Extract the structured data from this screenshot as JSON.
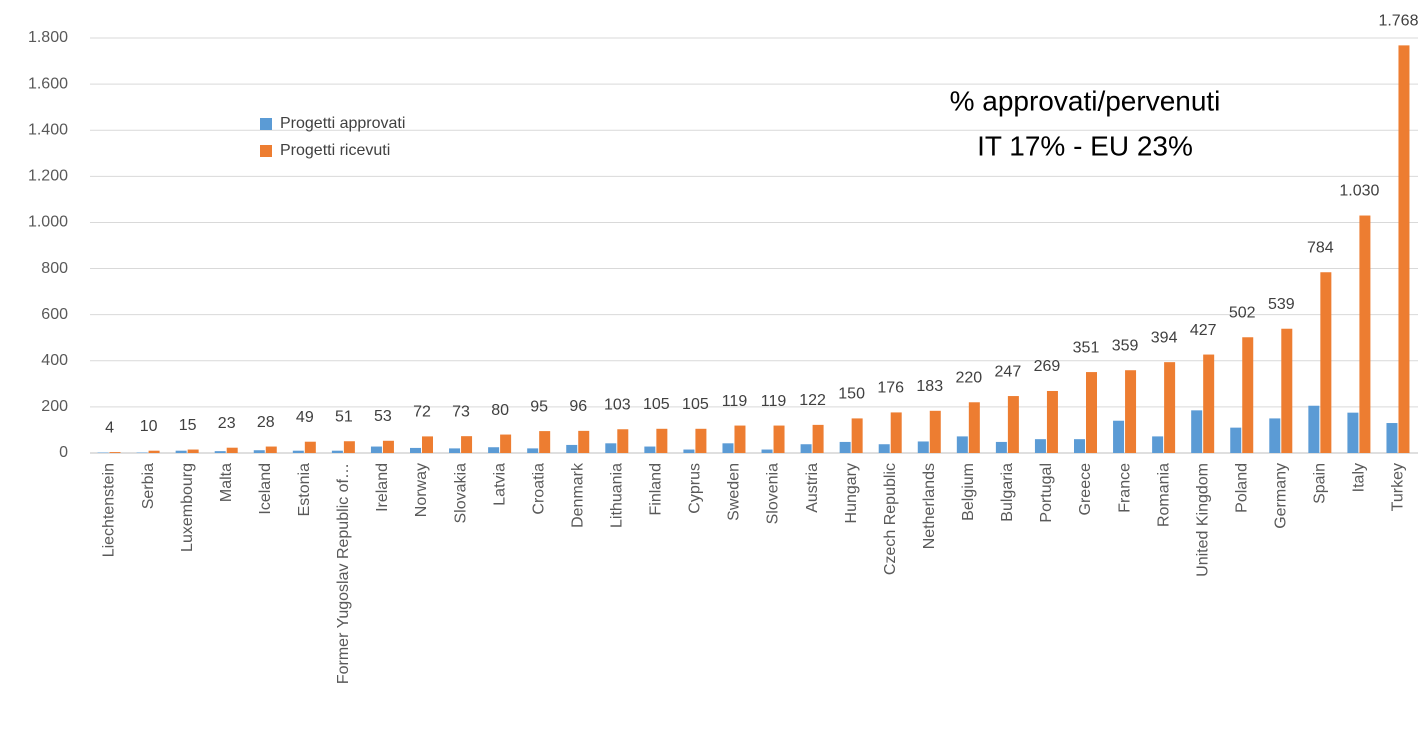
{
  "chart_data": {
    "type": "bar",
    "categories": [
      "Liechtenstein",
      "Serbia",
      "Luxembourg",
      "Malta",
      "Iceland",
      "Estonia",
      "Former Yugoslav Republic of…",
      "Ireland",
      "Norway",
      "Slovakia",
      "Latvia",
      "Croatia",
      "Denmark",
      "Lithuania",
      "Finland",
      "Cyprus",
      "Sweden",
      "Slovenia",
      "Austria",
      "Hungary",
      "Czech Republic",
      "Netherlands",
      "Belgium",
      "Bulgaria",
      "Portugal",
      "Greece",
      "France",
      "Romania",
      "United Kingdom",
      "Poland",
      "Germany",
      "Spain",
      "Italy",
      "Turkey"
    ],
    "series": [
      {
        "name": "Progetti approvati",
        "color": "#5b9bd5",
        "values": [
          2,
          2,
          10,
          8,
          12,
          10,
          10,
          28,
          22,
          20,
          25,
          20,
          35,
          42,
          28,
          15,
          42,
          15,
          38,
          48,
          38,
          50,
          72,
          48,
          60,
          60,
          140,
          72,
          185,
          110,
          150,
          205,
          175,
          130
        ]
      },
      {
        "name": "Progetti ricevuti",
        "color": "#ed7d31",
        "values": [
          4,
          10,
          15,
          23,
          28,
          49,
          51,
          53,
          72,
          73,
          80,
          95,
          96,
          103,
          105,
          105,
          119,
          119,
          122,
          150,
          176,
          183,
          220,
          247,
          269,
          351,
          359,
          394,
          427,
          502,
          539,
          784,
          1030,
          1768
        ],
        "value_labels": [
          "4",
          "10",
          "15",
          "23",
          "28",
          "49",
          "51",
          "53",
          "72",
          "73",
          "80",
          "95",
          "96",
          "103",
          "105",
          "105",
          "119",
          "119",
          "122",
          "150",
          "176",
          "183",
          "220",
          "247",
          "269",
          "351",
          "359",
          "394",
          "427",
          "502",
          "539",
          "784",
          "1.030",
          "1.768"
        ]
      }
    ],
    "annotations": [
      "% approvati/pervenuti",
      "IT 17% - EU 23%"
    ],
    "ylim": [
      0,
      1800
    ],
    "yticks": [
      0,
      200,
      400,
      600,
      800,
      {
        "value": 1000,
        "label": "1.000"
      },
      {
        "value": 1200,
        "label": "1.200"
      },
      {
        "value": 1400,
        "label": "1.400"
      },
      {
        "value": 1600,
        "label": "1.600"
      },
      {
        "value": 1800,
        "label": "1.800"
      }
    ],
    "grid": true
  }
}
